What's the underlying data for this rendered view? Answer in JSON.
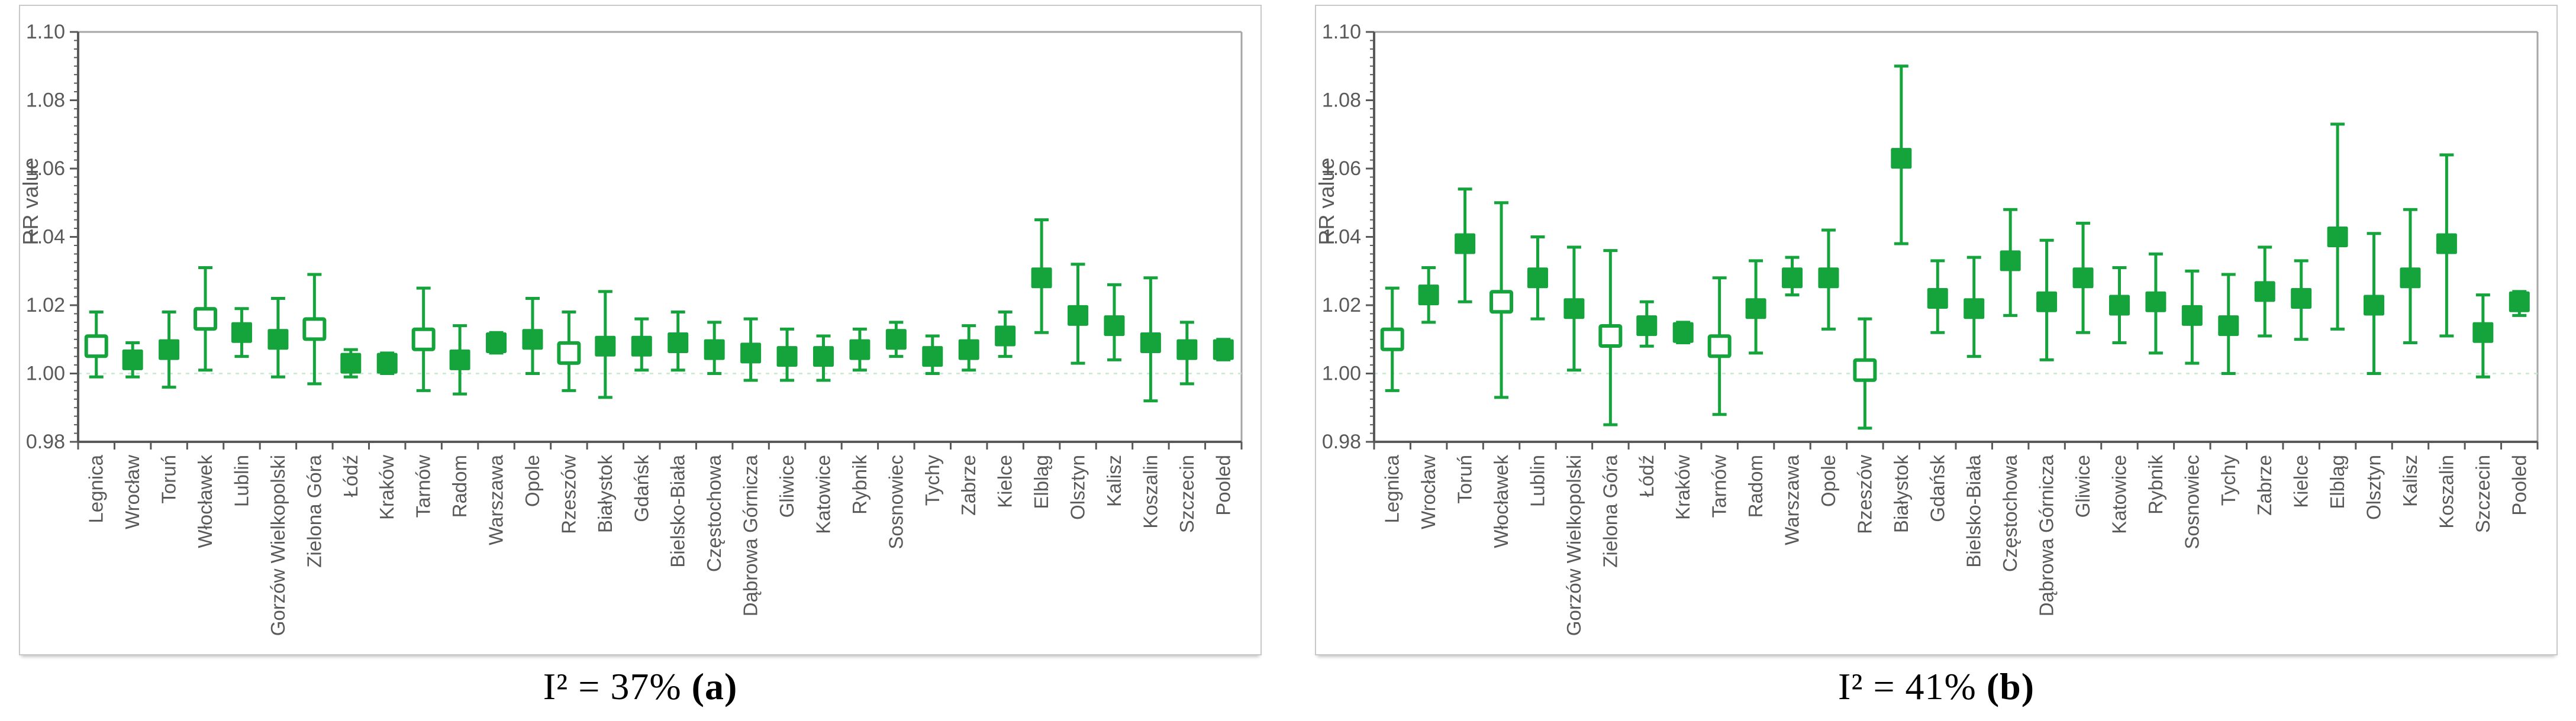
{
  "figure": {
    "background": "#ffffff",
    "marker_green": "#15a33b",
    "reference_line_color": "#c6e8cd",
    "axis_color": "#595959",
    "frame_color": "#a6a6a6",
    "tick_label_color": "#595959",
    "city_label_color": "#595959",
    "panel_border_color": "#c9c9c9"
  },
  "y_axis": {
    "title": "RR value",
    "min": 0.98,
    "max": 1.1,
    "major_step": 0.02,
    "minor_step": 0.0025,
    "ticks": [
      "1.10",
      "1.08",
      "1.06",
      "1.04",
      "1.02",
      "1.00",
      "0.98"
    ]
  },
  "panels": [
    {
      "caption_text": "I² = 37%",
      "caption_tag": "(a)"
    },
    {
      "caption_text": "I² = 41%",
      "caption_tag": "(b)"
    }
  ],
  "chart_data": [
    {
      "type": "scatter",
      "title": "I² = 37% (a)",
      "xlabel": "",
      "ylabel": "RR value",
      "ylim": [
        0.98,
        1.1
      ],
      "grid": "off",
      "legend": "none",
      "reference_line": 1.0,
      "i_squared": "37%",
      "categories": [
        "Legnica",
        "Wrocław",
        "Toruń",
        "Włocławek",
        "Lublin",
        "Gorzów Wielkopolski",
        "Zielona Góra",
        "Łódź",
        "Kraków",
        "Tarnów",
        "Radom",
        "Warszawa",
        "Opole",
        "Rzeszów",
        "Białystok",
        "Gdańsk",
        "Bielsko-Biała",
        "Częstochowa",
        "Dąbrowa Górnicza",
        "Gliwice",
        "Katowice",
        "Rybnik",
        "Sosnowiec",
        "Tychy",
        "Zabrze",
        "Kielce",
        "Elbląg",
        "Olsztyn",
        "Kalisz",
        "Koszalin",
        "Szczecin",
        "Pooled"
      ],
      "series": [
        {
          "name": "RR",
          "values": [
            1.008,
            1.004,
            1.007,
            1.016,
            1.012,
            1.01,
            1.013,
            1.003,
            1.003,
            1.01,
            1.004,
            1.009,
            1.01,
            1.006,
            1.008,
            1.008,
            1.009,
            1.007,
            1.006,
            1.005,
            1.005,
            1.007,
            1.01,
            1.005,
            1.007,
            1.011,
            1.028,
            1.017,
            1.014,
            1.009,
            1.007,
            1.007
          ]
        },
        {
          "name": "CI lower",
          "values": [
            0.999,
            0.999,
            0.996,
            1.001,
            1.005,
            0.999,
            0.997,
            0.999,
            1.0,
            0.995,
            0.994,
            1.006,
            1.0,
            0.995,
            0.993,
            1.001,
            1.001,
            1.0,
            0.998,
            0.998,
            0.998,
            1.001,
            1.005,
            1.0,
            1.001,
            1.005,
            1.012,
            1.003,
            1.004,
            0.992,
            0.997,
            1.004
          ]
        },
        {
          "name": "CI upper",
          "values": [
            1.018,
            1.009,
            1.018,
            1.031,
            1.019,
            1.022,
            1.029,
            1.007,
            1.006,
            1.025,
            1.014,
            1.012,
            1.022,
            1.018,
            1.024,
            1.016,
            1.018,
            1.015,
            1.016,
            1.013,
            1.011,
            1.013,
            1.015,
            1.011,
            1.014,
            1.018,
            1.045,
            1.032,
            1.026,
            1.028,
            1.015,
            1.01
          ]
        }
      ],
      "open_markers": [
        true,
        false,
        false,
        true,
        false,
        false,
        true,
        false,
        false,
        true,
        false,
        false,
        false,
        true,
        false,
        false,
        false,
        false,
        false,
        false,
        false,
        false,
        false,
        false,
        false,
        false,
        false,
        false,
        false,
        false,
        false,
        false
      ]
    },
    {
      "type": "scatter",
      "title": "I² = 41% (b)",
      "xlabel": "",
      "ylabel": "RR value",
      "ylim": [
        0.98,
        1.1
      ],
      "grid": "off",
      "legend": "none",
      "reference_line": 1.0,
      "i_squared": "41%",
      "categories": [
        "Legnica",
        "Wrocław",
        "Toruń",
        "Włocławek",
        "Lublin",
        "Gorzów Wielkopolski",
        "Zielona Góra",
        "Łódź",
        "Kraków",
        "Tarnów",
        "Radom",
        "Warszawa",
        "Opole",
        "Rzeszów",
        "Białystok",
        "Gdańsk",
        "Bielsko-Biała",
        "Częstochowa",
        "Dąbrowa Górnicza",
        "Gliwice",
        "Katowice",
        "Rybnik",
        "Sosnowiec",
        "Tychy",
        "Zabrze",
        "Kielce",
        "Elbląg",
        "Olsztyn",
        "Kalisz",
        "Koszalin",
        "Szczecin",
        "Pooled"
      ],
      "series": [
        {
          "name": "RR",
          "values": [
            1.01,
            1.023,
            1.038,
            1.021,
            1.028,
            1.019,
            1.011,
            1.014,
            1.012,
            1.008,
            1.019,
            1.028,
            1.028,
            1.001,
            1.063,
            1.022,
            1.019,
            1.033,
            1.021,
            1.028,
            1.02,
            1.021,
            1.017,
            1.014,
            1.024,
            1.022,
            1.04,
            1.02,
            1.028,
            1.038,
            1.012,
            1.021
          ]
        },
        {
          "name": "CI lower",
          "values": [
            0.995,
            1.015,
            1.021,
            0.993,
            1.016,
            1.001,
            0.985,
            1.008,
            1.009,
            0.988,
            1.006,
            1.023,
            1.013,
            0.984,
            1.038,
            1.012,
            1.005,
            1.017,
            1.004,
            1.012,
            1.009,
            1.006,
            1.003,
            1.0,
            1.011,
            1.01,
            1.013,
            1.0,
            1.009,
            1.011,
            0.999,
            1.017
          ]
        },
        {
          "name": "CI upper",
          "values": [
            1.025,
            1.031,
            1.054,
            1.05,
            1.04,
            1.037,
            1.036,
            1.021,
            1.015,
            1.028,
            1.033,
            1.034,
            1.042,
            1.016,
            1.09,
            1.033,
            1.034,
            1.048,
            1.039,
            1.044,
            1.031,
            1.035,
            1.03,
            1.029,
            1.037,
            1.033,
            1.073,
            1.041,
            1.048,
            1.064,
            1.023,
            1.024
          ]
        }
      ],
      "open_markers": [
        true,
        false,
        false,
        true,
        false,
        false,
        true,
        false,
        false,
        true,
        false,
        false,
        false,
        true,
        false,
        false,
        false,
        false,
        false,
        false,
        false,
        false,
        false,
        false,
        false,
        false,
        false,
        false,
        false,
        false,
        false,
        false
      ]
    }
  ]
}
